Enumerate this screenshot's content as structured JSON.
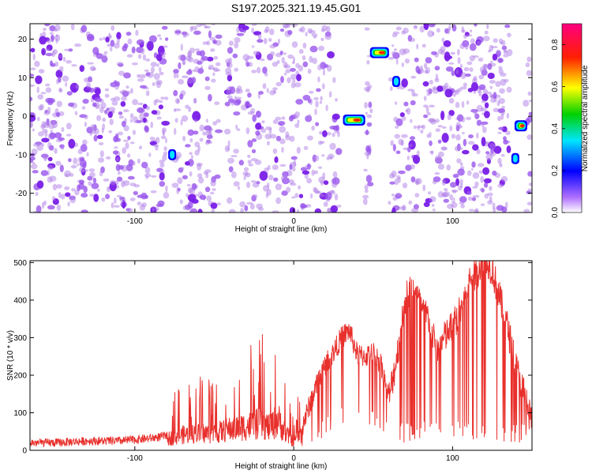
{
  "figure_title": "S197.2025.321.19.45.G01",
  "colors": {
    "snr_line": "#e8302c",
    "frame": "#000000",
    "scatter_base": "#b07ee8",
    "scatter_dense": "#7a1ee8"
  },
  "chart_data": [
    {
      "type": "heatmap",
      "title": "S197.2025.321.19.45.G01",
      "xlabel": "Height of straight line (km)",
      "ylabel": "Frequency (Hz)",
      "xlim": [
        -166,
        150
      ],
      "ylim": [
        -25,
        24
      ],
      "xticks": [
        -100,
        0,
        100
      ],
      "xtick_labels": [
        "-100",
        "0",
        "100"
      ],
      "yticks": [
        20,
        10,
        0,
        -10,
        -20
      ],
      "ytick_labels": [
        "20",
        "10",
        "0",
        "-10",
        "-20"
      ],
      "gaps_km": [
        [
          -80,
          -75
        ],
        [
          -47,
          -42
        ],
        [
          29,
          45
        ],
        [
          49,
          60
        ],
        [
          136,
          146
        ]
      ],
      "hotspots": [
        {
          "x": 32,
          "y": -1,
          "amp": 0.85,
          "x_end": 44
        },
        {
          "x": 49,
          "y": 16.5,
          "amp": 0.7,
          "x_end": 59
        },
        {
          "x": 63,
          "y": 9,
          "amp": 0.3,
          "x_end": 64
        },
        {
          "x": 140,
          "y": -2.5,
          "amp": 0.75,
          "x_end": 146
        },
        {
          "x": -78,
          "y": -10,
          "amp": 0.25,
          "x_end": -77
        },
        {
          "x": 138,
          "y": -11,
          "amp": 0.25,
          "x_end": 139
        }
      ],
      "colorbar": {
        "label": "Normalized spectral amplitude",
        "range": [
          0,
          0.9
        ],
        "ticks": [
          0.0,
          0.2,
          0.4,
          0.6,
          0.8
        ],
        "tick_labels": [
          "0.0",
          "0.2",
          "0.4",
          "0.6",
          "0.8"
        ]
      }
    },
    {
      "type": "line",
      "xlabel": "Height of straight line (km)",
      "ylabel": "SNR (10 * v/v)",
      "xlim": [
        -166,
        150
      ],
      "ylim": [
        0,
        505
      ],
      "xticks": [
        -100,
        0,
        100
      ],
      "xtick_labels": [
        "-100",
        "0",
        "100"
      ],
      "yticks": [
        0,
        100,
        200,
        300,
        400,
        500
      ],
      "ytick_labels": [
        "0",
        "100",
        "200",
        "300",
        "400",
        "500"
      ],
      "series": [
        {
          "name": "SNR",
          "x": [
            -166,
            -150,
            -130,
            -110,
            -95,
            -85,
            -80,
            -70,
            -60,
            -50,
            -40,
            -30,
            -20,
            -15,
            -10,
            -5,
            0,
            5,
            10,
            15,
            20,
            25,
            30,
            35,
            40,
            45,
            50,
            55,
            60,
            65,
            70,
            75,
            80,
            85,
            90,
            95,
            100,
            105,
            110,
            115,
            120,
            125,
            130,
            135,
            140,
            145,
            150
          ],
          "values": [
            20,
            20,
            25,
            25,
            30,
            35,
            40,
            55,
            60,
            60,
            75,
            85,
            95,
            80,
            110,
            60,
            30,
            60,
            120,
            180,
            230,
            260,
            300,
            320,
            255,
            250,
            260,
            230,
            140,
            250,
            400,
            440,
            380,
            350,
            260,
            300,
            330,
            370,
            450,
            470,
            520,
            480,
            400,
            320,
            220,
            150,
            80
          ]
        }
      ]
    }
  ]
}
